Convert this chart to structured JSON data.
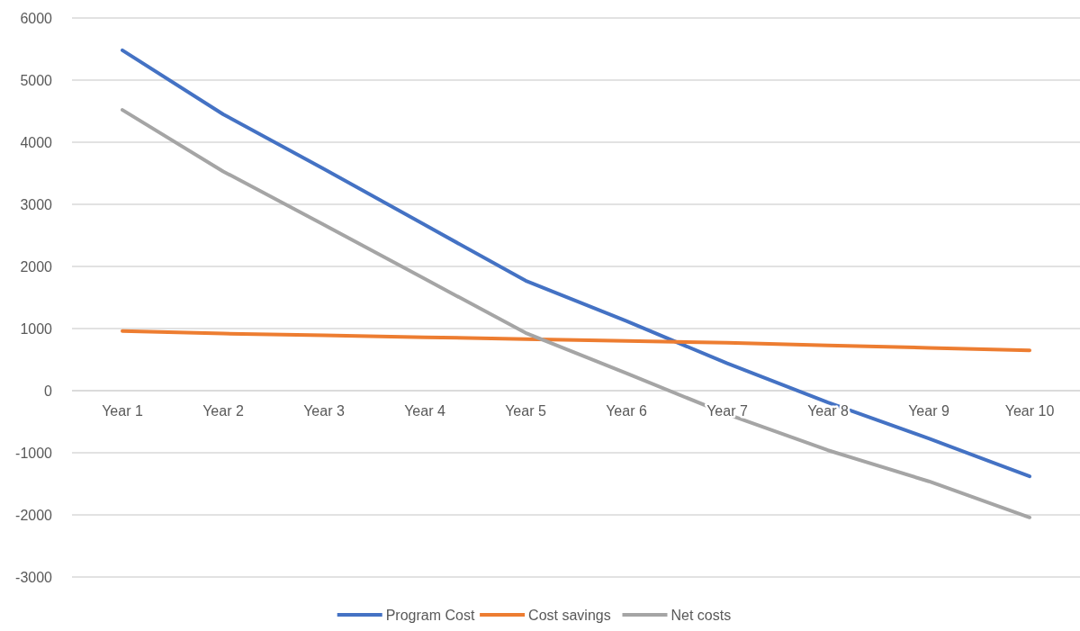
{
  "chart_data": {
    "type": "line",
    "categories": [
      "Year 1",
      "Year 2",
      "Year 3",
      "Year 4",
      "Year 5",
      "Year 6",
      "Year 7",
      "Year 8",
      "Year 9",
      "Year 10"
    ],
    "series": [
      {
        "name": "Program Cost",
        "color": "#4472c4",
        "values": [
          5480,
          4450,
          3570,
          2670,
          1770,
          1120,
          440,
          -190,
          -770,
          -1380
        ]
      },
      {
        "name": "Cost savings",
        "color": "#ed7d31",
        "values": [
          960,
          920,
          890,
          860,
          830,
          800,
          770,
          730,
          690,
          650
        ]
      },
      {
        "name": "Net costs",
        "color": "#a5a5a5",
        "values": [
          4520,
          3530,
          2670,
          1800,
          930,
          280,
          -380,
          -960,
          -1460,
          -2040
        ]
      }
    ],
    "ylim": [
      -3000,
      6000
    ],
    "yticks": [
      -3000,
      -2000,
      -1000,
      0,
      1000,
      2000,
      3000,
      4000,
      5000,
      6000
    ],
    "grid": "y",
    "legend": "bottom",
    "marker": "none",
    "line_style": "solid"
  }
}
